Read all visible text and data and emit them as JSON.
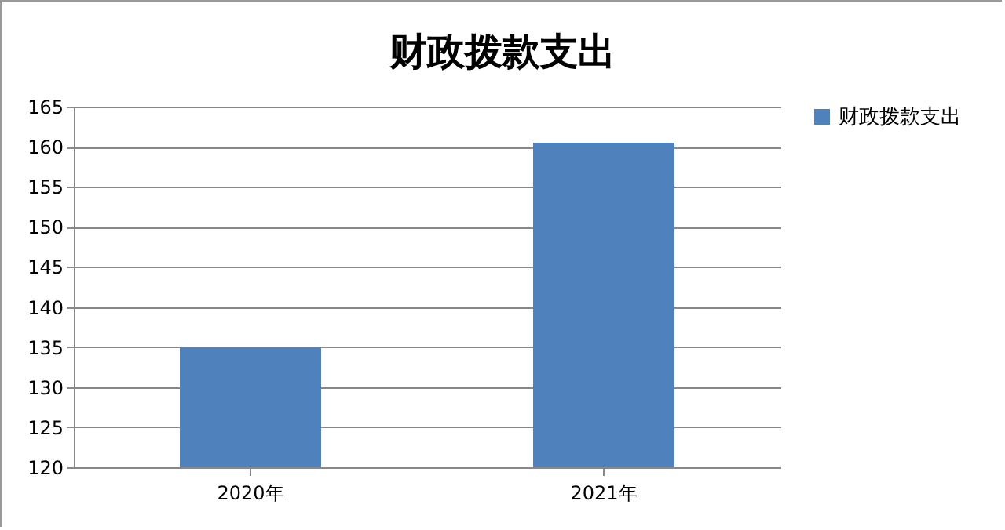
{
  "chart_data": {
    "type": "bar",
    "title": "财政拨款支出",
    "categories": [
      "2020年",
      "2021年"
    ],
    "series": [
      {
        "name": "财政拨款支出",
        "color": "#4f81bd",
        "values": [
          135,
          160.5
        ]
      }
    ],
    "ylim": [
      120,
      165
    ],
    "yticks": [
      120,
      125,
      130,
      135,
      140,
      145,
      150,
      155,
      160,
      165
    ],
    "grid": "y",
    "legend": "right"
  }
}
